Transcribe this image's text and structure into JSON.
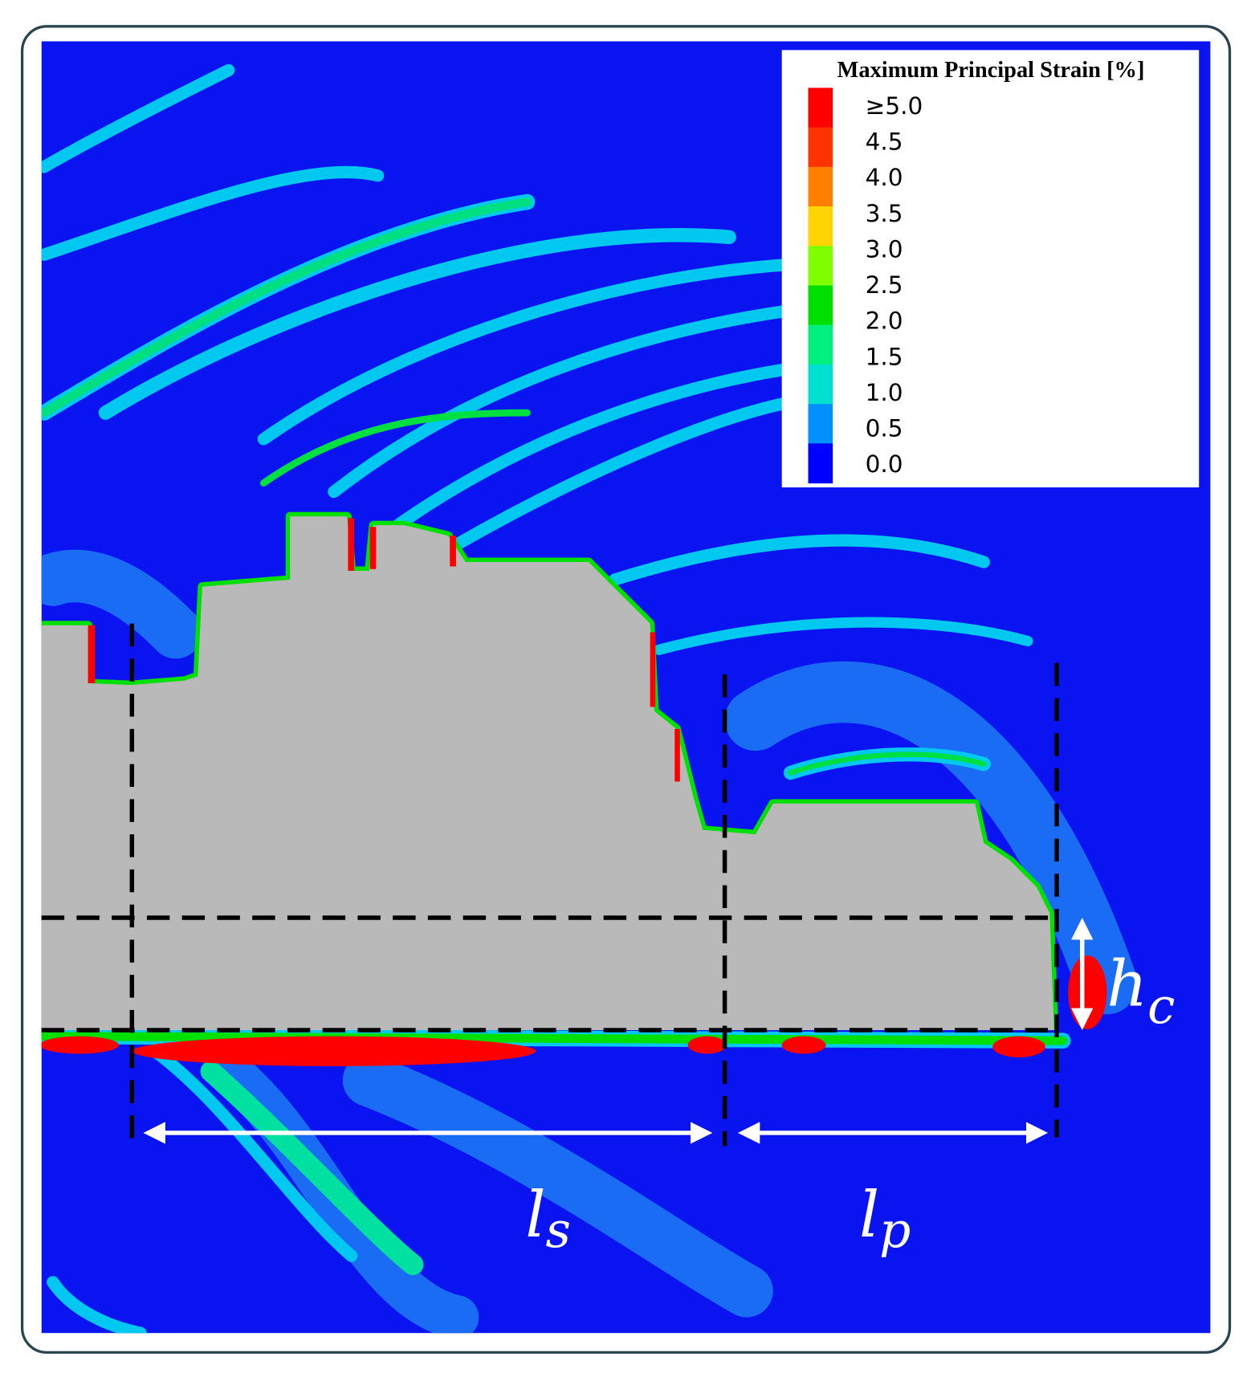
{
  "legend": {
    "title": "Maximum Principal Strain [%]",
    "labels": [
      "≥5.0",
      "4.5",
      "4.0",
      "3.5",
      "3.0",
      "2.5",
      "2.0",
      "1.5",
      "1.0",
      "0.5",
      "0.0"
    ],
    "colors": [
      "#ff0000",
      "#ff3300",
      "#ff8000",
      "#ffd400",
      "#80ff00",
      "#00e000",
      "#00f080",
      "#00e0d0",
      "#0090ff",
      "#0000ff"
    ]
  },
  "annotations": {
    "ls": {
      "main": "l",
      "sub": "s"
    },
    "lp": {
      "main": "l",
      "sub": "p"
    },
    "hc": {
      "main": "h",
      "sub": "c"
    }
  }
}
